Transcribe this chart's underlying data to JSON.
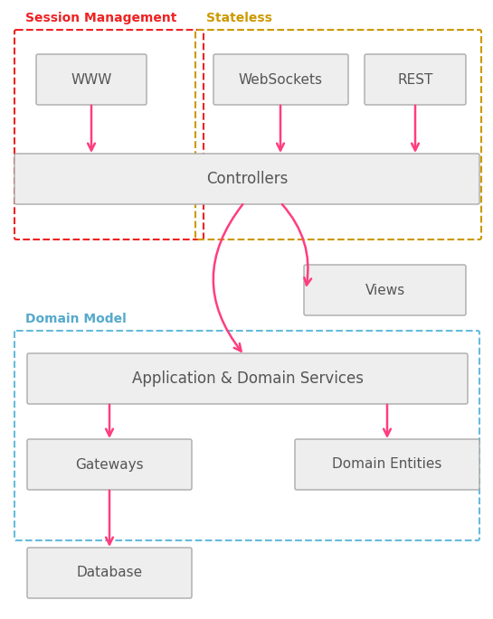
{
  "bg_color": "#ffffff",
  "arrow_color": "#FF3D7F",
  "box_fill": "#eeeeee",
  "box_edge": "#aaaaaa",
  "session_border": "#EE2222",
  "stateless_border": "#CC9900",
  "domain_border": "#66BBDD",
  "session_label": "Session Management",
  "stateless_label": "Stateless",
  "domain_label": "Domain Model",
  "session_label_color": "#EE2222",
  "stateless_label_color": "#CC9900",
  "domain_label_color": "#55AACC",
  "text_color": "#555555",
  "figw": 5.45,
  "figh": 6.85,
  "dpi": 100
}
